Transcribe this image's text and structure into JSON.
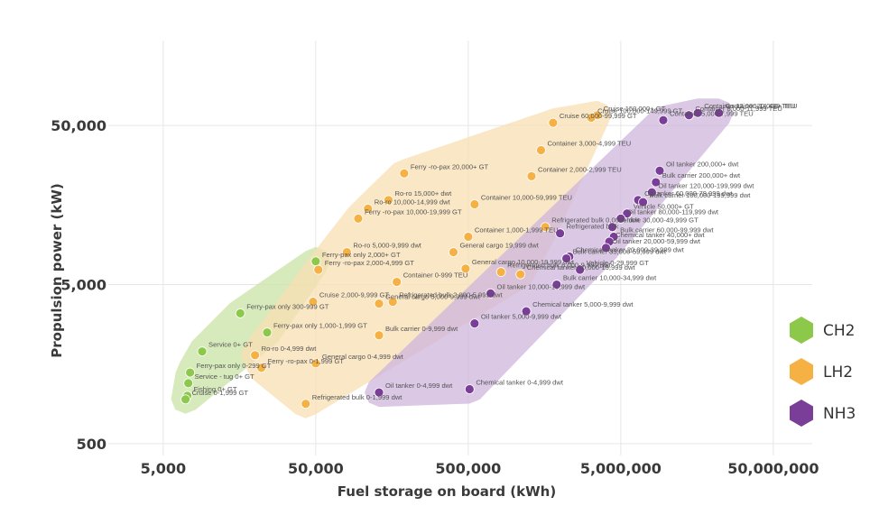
{
  "chart_data": {
    "type": "scatter",
    "x_scale": "log",
    "y_scale": "log",
    "xlabel": "Fuel storage on board (kWh)",
    "ylabel": "Propulsion power (kW)",
    "x_ticks": [
      {
        "v": 5000,
        "label": "5,000"
      },
      {
        "v": 50000,
        "label": "50,000"
      },
      {
        "v": 500000,
        "label": "500,000"
      },
      {
        "v": 5000000,
        "label": "5,000,000"
      },
      {
        "v": 50000000,
        "label": "50,000,000"
      }
    ],
    "y_ticks": [
      {
        "v": 500,
        "label": "500"
      },
      {
        "v": 5000,
        "label": "5,000"
      },
      {
        "v": 50000,
        "label": "50,000"
      }
    ],
    "xlim": [
      2500,
      90000000
    ],
    "ylim": [
      450,
      150000
    ],
    "grid": true,
    "legend_position": "right",
    "series": [
      {
        "name": "CH2",
        "color": "#8cc94a",
        "region_color": "#c9e3a4",
        "points": [
          {
            "label": "Ferry-pax only 2,000+ GT",
            "x": 50000,
            "y": 7000
          },
          {
            "label": "Ferry-pax only 300-999 GT",
            "x": 16000,
            "y": 3300
          },
          {
            "label": "Ferry-pax only 1,000-1,999 GT",
            "x": 24000,
            "y": 2500
          },
          {
            "label": "Service 0+ GT",
            "x": 9000,
            "y": 1900
          },
          {
            "label": "Ferry-pax only 0-299 GT",
            "x": 7500,
            "y": 1400
          },
          {
            "label": "Service - tug 0+ GT",
            "x": 7300,
            "y": 1200
          },
          {
            "label": "Fishing 0+ GT",
            "x": 7200,
            "y": 1000
          },
          {
            "label": "Cruise 0-1,999 GT",
            "x": 7000,
            "y": 950
          }
        ]
      },
      {
        "name": "LH2",
        "color": "#f5b143",
        "region_color": "#f8dfb3",
        "points": [
          {
            "label": "Cruise 150,000+ GT",
            "x": 3500000,
            "y": 58000
          },
          {
            "label": "Cruise 100,000-149,999 GT",
            "x": 3200000,
            "y": 56000
          },
          {
            "label": "Cruise 60,000-99,999 GT",
            "x": 1800000,
            "y": 52000
          },
          {
            "label": "Container 3,000-4,999 TEU",
            "x": 1500000,
            "y": 35000
          },
          {
            "label": "Container 2,000-2,999 TEU",
            "x": 1300000,
            "y": 24000
          },
          {
            "label": "Ferry -ro-pax 20,000+ GT",
            "x": 190000,
            "y": 25000
          },
          {
            "label": "Ro-ro 15,000+ dwt",
            "x": 150000,
            "y": 17000
          },
          {
            "label": "Container 10,000-59,999 TEU",
            "x": 550000,
            "y": 16000
          },
          {
            "label": "Ro-ro 10,000-14,999 dwt",
            "x": 110000,
            "y": 15000
          },
          {
            "label": "Ferry -ro-pax 10,000-19,999 GT",
            "x": 95000,
            "y": 13000
          },
          {
            "label": "Refrigerated bulk 0,000+ dwt",
            "x": 1600000,
            "y": 11500
          },
          {
            "label": "Container 1,000-1,999 TEU",
            "x": 500000,
            "y": 10000
          },
          {
            "label": "Ro-ro 5,000-9,999 dwt",
            "x": 80000,
            "y": 8000
          },
          {
            "label": "General cargo 19,999 dwt",
            "x": 400000,
            "y": 8000
          },
          {
            "label": "Refrigerated bulk 6,000-9,999 dwt",
            "x": 820000,
            "y": 6000
          },
          {
            "label": "General cargo 10,000-19,999 dwt",
            "x": 480000,
            "y": 6300
          },
          {
            "label": "Ferry -ro-pax 2,000-4,999 GT",
            "x": 52000,
            "y": 6200
          },
          {
            "label": "Container 0-999 TEU",
            "x": 170000,
            "y": 5200
          },
          {
            "label": "Chemical tanker 10,000-19,999 dwt",
            "x": 1100000,
            "y": 5800
          },
          {
            "label": "Refrigerated bulk 2,000-5,999 dwt",
            "x": 160000,
            "y": 3900
          },
          {
            "label": "General cargo 5,000-9,999 dwt",
            "x": 130000,
            "y": 3800
          },
          {
            "label": "Cruise 2,000-9,999 GT",
            "x": 48000,
            "y": 3900
          },
          {
            "label": "Bulk carrier 0-9,999 dwt",
            "x": 130000,
            "y": 2400
          },
          {
            "label": "Ro-ro 0-4,999 dwt",
            "x": 20000,
            "y": 1800
          },
          {
            "label": "Ferry -ro-pax 0-1,999 GT",
            "x": 22000,
            "y": 1500
          },
          {
            "label": "General cargo 0-4,999 dwt",
            "x": 50000,
            "y": 1600
          },
          {
            "label": "Refrigerated bulk 0-1,999 dwt",
            "x": 43000,
            "y": 890
          }
        ]
      },
      {
        "name": "NH3",
        "color": "#7a3d98",
        "region_color": "#cdb5dc",
        "points": [
          {
            "label": "Container 8,000-11,999 TEU",
            "x": 14000000,
            "y": 58000
          },
          {
            "label": "Container 12,000-14,499 TEU",
            "x": 16000000,
            "y": 60000
          },
          {
            "label": "Container 20,000+ TEU",
            "x": 22000000,
            "y": 60000
          },
          {
            "label": "Container 5,000-7,999 TEU",
            "x": 9500000,
            "y": 54000
          },
          {
            "label": "Oil tanker 200,000+ dwt",
            "x": 9000000,
            "y": 26000
          },
          {
            "label": "Bulk carrier 200,000+ dwt",
            "x": 8500000,
            "y": 22000
          },
          {
            "label": "Oil tanker 120,000-199,999 dwt",
            "x": 8000000,
            "y": 19000
          },
          {
            "label": "Oil tanker 60,000-79,999 dwt",
            "x": 6500000,
            "y": 17000
          },
          {
            "label": "Bulk carrier 100,000-199,999 dwt",
            "x": 7000000,
            "y": 16500
          },
          {
            "label": "Vehicle 50,000+ GT",
            "x": 5500000,
            "y": 14000
          },
          {
            "label": "Oil tanker 80,000-119,999 dwt",
            "x": 5000000,
            "y": 13000
          },
          {
            "label": "Vehicle 30,000-49,999 GT",
            "x": 4400000,
            "y": 11500
          },
          {
            "label": "Bulk carrier 60,000-99,999 dwt",
            "x": 4500000,
            "y": 10000
          },
          {
            "label": "Chemical tanker 40,000+ dwt",
            "x": 4200000,
            "y": 9300
          },
          {
            "label": "Oil tanker 20,000-59,999 dwt",
            "x": 4000000,
            "y": 8500
          },
          {
            "label": "Chemical tanker 20,000-39,999 dwt",
            "x": 2300000,
            "y": 7500
          },
          {
            "label": "Bulk carrier 35,000-59,999 dwt",
            "x": 2200000,
            "y": 7300
          },
          {
            "label": "Vehicle 0-29,999 GT",
            "x": 2700000,
            "y": 6200
          },
          {
            "label": "Refrigerated bulk",
            "x": 2000000,
            "y": 10500
          },
          {
            "label": "Bulk carrier 10,000-34,999 dwt",
            "x": 1900000,
            "y": 5000
          },
          {
            "label": "Oil tanker 10,000-19,999 dwt",
            "x": 700000,
            "y": 4400
          },
          {
            "label": "Chemical tanker 5,000-9,999 dwt",
            "x": 1200000,
            "y": 3400
          },
          {
            "label": "Oil tanker 5,000-9,999 dwt",
            "x": 550000,
            "y": 2850
          },
          {
            "label": "Chemical tanker 0-4,999 dwt",
            "x": 510000,
            "y": 1100
          },
          {
            "label": "Oil tanker 0-4,999 dwt",
            "x": 130000,
            "y": 1050
          }
        ]
      }
    ]
  }
}
